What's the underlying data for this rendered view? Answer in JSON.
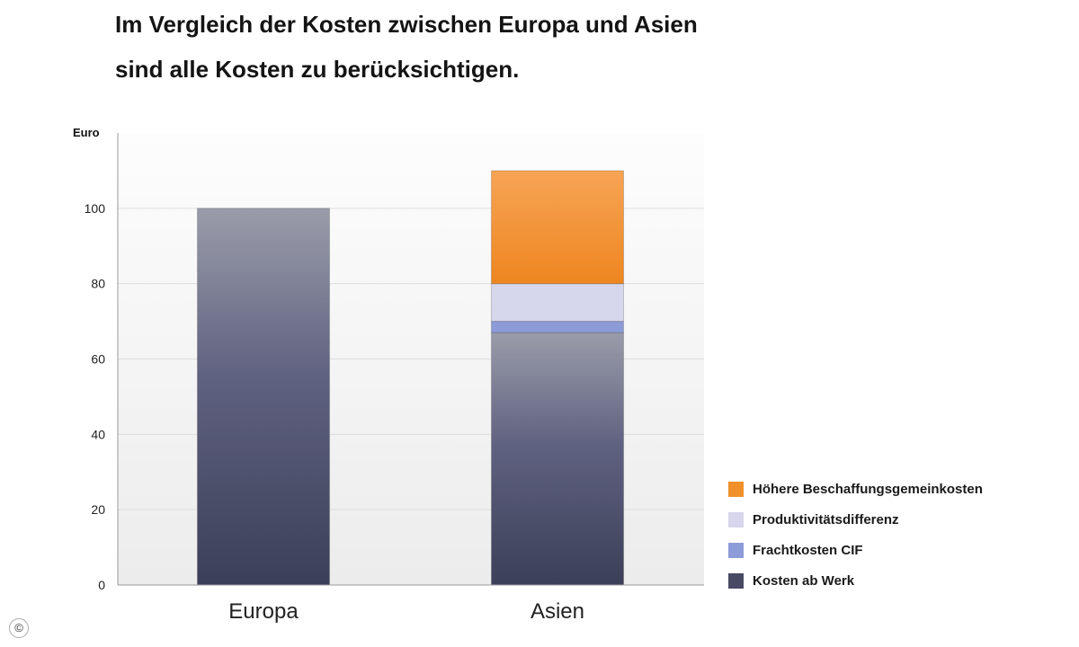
{
  "title": {
    "line1": "Im Vergleich der Kosten zwischen Europa und Asien",
    "line2": "sind alle Kosten zu berücksichtigen."
  },
  "copyright_symbol": "©",
  "chart_data": {
    "type": "bar",
    "stacked": true,
    "categories": [
      "Europa",
      "Asien"
    ],
    "ylabel": "Euro",
    "ylim": [
      0,
      120
    ],
    "yticks": [
      0,
      20,
      40,
      60,
      80,
      100
    ],
    "grid": true,
    "legend_position": "right-bottom",
    "series": [
      {
        "name": "Kosten ab Werk",
        "values": [
          100,
          67
        ],
        "color": "#474a62"
      },
      {
        "name": "Frachtkosten CIF",
        "values": [
          0,
          3
        ],
        "color": "#8d9bd8"
      },
      {
        "name": "Produktivitätsdifferenz",
        "values": [
          0,
          10
        ],
        "color": "#d6d6ec"
      },
      {
        "name": "Höhere Beschaffungsgemeinkosten",
        "values": [
          0,
          30
        ],
        "color": "#f0902c"
      }
    ]
  }
}
